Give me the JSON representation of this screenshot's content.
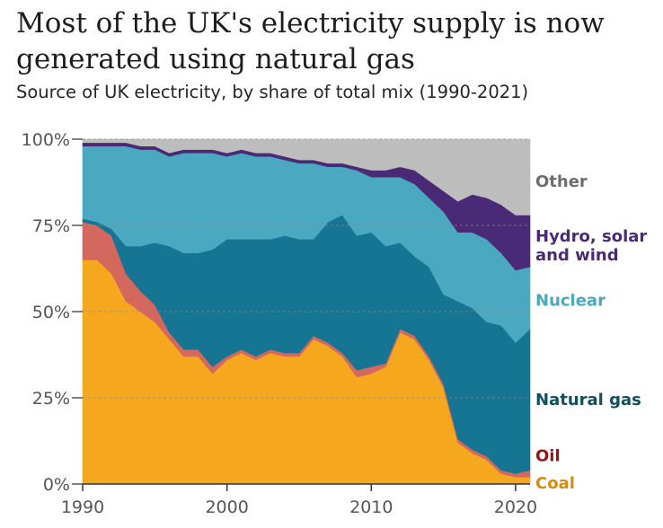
{
  "chart_data": {
    "type": "area",
    "stacked": true,
    "title": "Most of the UK's electricity supply is now generated using natural gas",
    "subtitle": "Source of UK electricity, by share of total mix (1990-2021)",
    "xlabel": "",
    "ylabel": "",
    "xlim": [
      1990,
      2021
    ],
    "ylim": [
      0,
      100
    ],
    "x_ticks": [
      {
        "value": 1990,
        "label": "1990"
      },
      {
        "value": 2000,
        "label": "2000"
      },
      {
        "value": 2010,
        "label": "2010"
      },
      {
        "value": 2020,
        "label": "2020"
      }
    ],
    "y_ticks": [
      {
        "value": 0,
        "label": "0%"
      },
      {
        "value": 25,
        "label": "25%"
      },
      {
        "value": 50,
        "label": "50%"
      },
      {
        "value": 75,
        "label": "75%"
      },
      {
        "value": 100,
        "label": "100%"
      }
    ],
    "grid": true,
    "legend": "direct labels at right",
    "x": [
      1990,
      1991,
      1992,
      1993,
      1994,
      1995,
      1996,
      1997,
      1998,
      1999,
      2000,
      2001,
      2002,
      2003,
      2004,
      2005,
      2006,
      2007,
      2008,
      2009,
      2010,
      2011,
      2012,
      2013,
      2014,
      2015,
      2016,
      2017,
      2018,
      2019,
      2020,
      2021
    ],
    "series": [
      {
        "name": "Coal",
        "color": "#f5a81e",
        "label_color": "#d98c0c",
        "values": [
          65,
          65,
          61,
          53,
          50,
          47,
          42,
          37,
          37,
          32,
          36,
          38,
          36,
          38,
          37,
          37,
          42,
          40,
          37,
          31,
          32,
          34,
          44,
          42,
          36,
          28,
          12,
          9,
          7,
          3,
          2,
          2
        ]
      },
      {
        "name": "Oil",
        "color": "#d4685e",
        "label_color": "#961414",
        "values": [
          11,
          10,
          11,
          8,
          6,
          5,
          2,
          2,
          2,
          2,
          1,
          1,
          1,
          1,
          1,
          1,
          1,
          1,
          1,
          2,
          2,
          1,
          1,
          1,
          1,
          1,
          1,
          1,
          1,
          1,
          1,
          2
        ]
      },
      {
        "name": "Natural gas",
        "color": "#177594",
        "label_color": "#0f4f5e",
        "values": [
          1,
          1,
          2,
          8,
          13,
          18,
          25,
          28,
          28,
          34,
          34,
          32,
          34,
          32,
          34,
          33,
          28,
          35,
          40,
          39,
          39,
          34,
          25,
          23,
          26,
          26,
          40,
          41,
          39,
          42,
          38,
          41
        ]
      },
      {
        "name": "Nuclear",
        "color": "#4aa8c0",
        "label_color": "#4aa8c0",
        "values": [
          21,
          22,
          24,
          29,
          28,
          27,
          26,
          29,
          29,
          28,
          24,
          25,
          24,
          24,
          22,
          22,
          22,
          16,
          14,
          19,
          16,
          20,
          19,
          21,
          20,
          24,
          20,
          22,
          24,
          21,
          21,
          18
        ]
      },
      {
        "name": "Hydro, solar and wind",
        "color": "#4a2a76",
        "label_color": "#4a2a76",
        "values": [
          1,
          1,
          1,
          1,
          1,
          1,
          1,
          1,
          1,
          1,
          1,
          1,
          1,
          1,
          1,
          1,
          1,
          1,
          1,
          1,
          2,
          2,
          3,
          4,
          5,
          6,
          9,
          11,
          12,
          14,
          16,
          15
        ]
      },
      {
        "name": "Other",
        "color": "#bdbdbd",
        "label_color": "#6e6e6e",
        "values": [
          1,
          1,
          1,
          1,
          2,
          2,
          4,
          3,
          3,
          3,
          4,
          3,
          4,
          4,
          5,
          6,
          6,
          7,
          7,
          8,
          9,
          9,
          8,
          9,
          12,
          15,
          18,
          16,
          17,
          19,
          22,
          22
        ]
      }
    ],
    "label_lines": {
      "Coal": [
        "Coal"
      ],
      "Oil": [
        "Oil"
      ],
      "Natural gas": [
        "Natural gas"
      ],
      "Nuclear": [
        "Nuclear"
      ],
      "Hydro, solar and wind": [
        "Hydro, solar",
        "and wind"
      ],
      "Other": [
        "Other"
      ]
    }
  }
}
